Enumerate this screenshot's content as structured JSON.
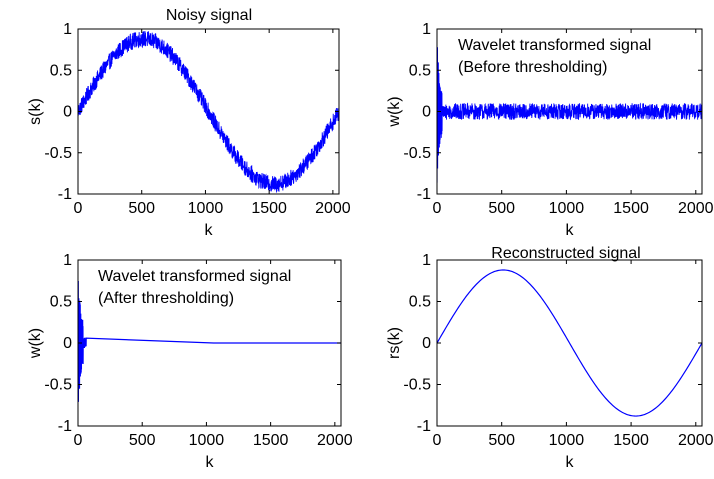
{
  "colors": {
    "series": "#0000ff",
    "axes": "#000000",
    "background": "#ffffff"
  },
  "chart_data": [
    {
      "type": "line",
      "title": "Noisy signal",
      "annotation": [],
      "xlabel": "k",
      "ylabel": "s(k)",
      "xlim": [
        0,
        2048
      ],
      "ylim": [
        -1,
        1
      ],
      "xticks": [
        0,
        500,
        1000,
        1500,
        2000
      ],
      "yticks": [
        1,
        0.5,
        0,
        -0.5,
        -1
      ],
      "xtick_labels": [
        "0",
        "500",
        "1000",
        "1500",
        "2000"
      ],
      "ytick_labels": [
        "1",
        "0.5",
        "0",
        "-0.5",
        "-1"
      ],
      "grid": false,
      "series": [
        {
          "signal": "sine",
          "amplitude": 0.88,
          "period": 2048,
          "noise": 0.1,
          "x_end": 2048
        }
      ]
    },
    {
      "type": "line",
      "title": "",
      "annotation": [
        "Wavelet transformed signal",
        "(Before thresholding)"
      ],
      "xlabel": "k",
      "ylabel": "w(k)",
      "xlim": [
        0,
        2048
      ],
      "ylim": [
        -1,
        1
      ],
      "xticks": [
        0,
        500,
        1000,
        1500,
        2000
      ],
      "yticks": [
        1,
        0.5,
        0,
        -0.5,
        -1
      ],
      "xtick_labels": [
        "0",
        "500",
        "1000",
        "1500",
        "2000"
      ],
      "ytick_labels": [
        "1",
        "0.5",
        "0",
        "-0.5",
        "-1"
      ],
      "grid": false,
      "series": [
        {
          "signal": "wavelet-coefficients",
          "burst_end": 64,
          "burst_amplitude": 1,
          "detail_noise": 0.1,
          "x_end": 2048
        }
      ]
    },
    {
      "type": "line",
      "title": "",
      "annotation": [
        "Wavelet transformed signal",
        "(After thresholding)"
      ],
      "xlabel": "k",
      "ylabel": "w(k)",
      "xlim": [
        0,
        2048
      ],
      "ylim": [
        -1,
        1
      ],
      "xticks": [
        0,
        500,
        1000,
        1500,
        2000
      ],
      "yticks": [
        1,
        0.5,
        0,
        -0.5,
        -1
      ],
      "xtick_labels": [
        "0",
        "500",
        "1000",
        "1500",
        "2000"
      ],
      "ytick_labels": [
        "1",
        "0.5",
        "0",
        "-0.5",
        "-1"
      ],
      "grid": false,
      "series": [
        {
          "signal": "thresholded-coefficients",
          "burst_end": 64,
          "burst_amplitude": 1,
          "detail_noise": 0,
          "x_end": 2048
        }
      ]
    },
    {
      "type": "line",
      "title": "Reconstructed signal",
      "annotation": [],
      "xlabel": "k",
      "ylabel": "rs(k)",
      "xlim": [
        0,
        2048
      ],
      "ylim": [
        -1,
        1
      ],
      "xticks": [
        0,
        500,
        1000,
        1500,
        2000
      ],
      "yticks": [
        1,
        0.5,
        0,
        -0.5,
        -1
      ],
      "xtick_labels": [
        "0",
        "500",
        "1000",
        "1500",
        "2000"
      ],
      "ytick_labels": [
        "1",
        "0.5",
        "0",
        "-0.5",
        "-1"
      ],
      "grid": false,
      "series": [
        {
          "signal": "sine",
          "amplitude": 0.88,
          "period": 2048,
          "noise": 0,
          "x_end": 2048
        }
      ]
    }
  ]
}
